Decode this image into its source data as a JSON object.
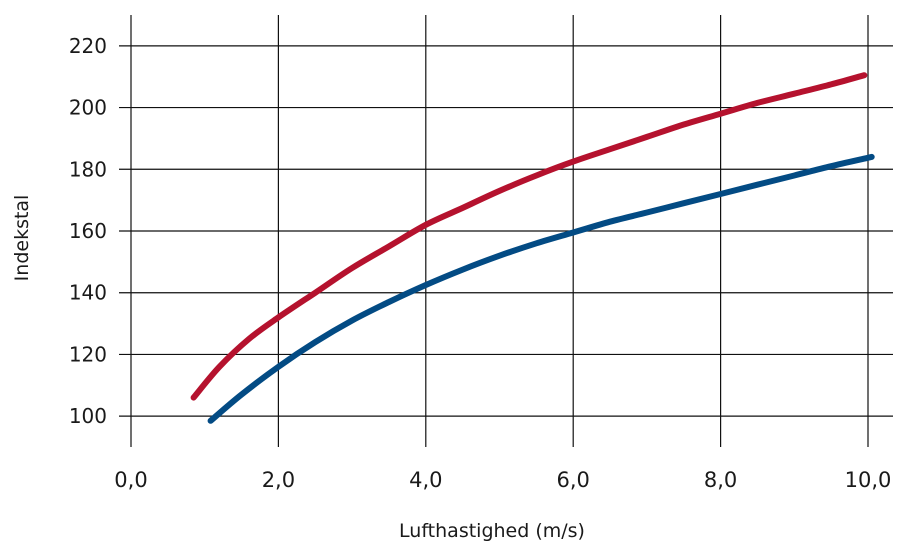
{
  "chart_data": {
    "type": "line",
    "xlabel": "Lufthastighed (m/s)",
    "ylabel": "Indekstal",
    "xlim": [
      0,
      10
    ],
    "ylim": [
      90,
      230
    ],
    "x_ticks": [
      {
        "value": 0,
        "label": "0,0"
      },
      {
        "value": 2,
        "label": "2,0"
      },
      {
        "value": 4,
        "label": "4,0"
      },
      {
        "value": 6,
        "label": "6,0"
      },
      {
        "value": 8,
        "label": "8,0"
      },
      {
        "value": 10,
        "label": "10,0"
      }
    ],
    "y_ticks": [
      {
        "value": 100,
        "label": "100"
      },
      {
        "value": 120,
        "label": "120"
      },
      {
        "value": 140,
        "label": "140"
      },
      {
        "value": 160,
        "label": "160"
      },
      {
        "value": 180,
        "label": "180"
      },
      {
        "value": 200,
        "label": "200"
      },
      {
        "value": 220,
        "label": "220"
      }
    ],
    "grid": true,
    "legend": "none",
    "series": [
      {
        "color": "#b5122e",
        "x": [
          0.85,
          1.2,
          1.6,
          2.0,
          2.5,
          3.0,
          3.5,
          4.0,
          4.5,
          5.0,
          5.5,
          6.0,
          6.5,
          7.0,
          7.5,
          8.0,
          8.5,
          9.0,
          9.5,
          9.95
        ],
        "y": [
          106,
          116,
          125,
          132,
          140,
          148,
          155,
          162,
          167.5,
          173,
          178,
          182.5,
          186.5,
          190.5,
          194.5,
          198,
          201.5,
          204.5,
          207.5,
          210.5
        ]
      },
      {
        "color": "#034b84",
        "x": [
          1.08,
          1.5,
          2.0,
          2.5,
          3.0,
          3.5,
          4.0,
          4.5,
          5.0,
          5.5,
          6.0,
          6.5,
          7.0,
          7.5,
          8.0,
          8.5,
          9.0,
          9.5,
          10.05
        ],
        "y": [
          98.5,
          107,
          116,
          124,
          131,
          137,
          142.5,
          147.5,
          152,
          156,
          159.5,
          163,
          166,
          169,
          172,
          175,
          178,
          181,
          184
        ]
      }
    ]
  }
}
